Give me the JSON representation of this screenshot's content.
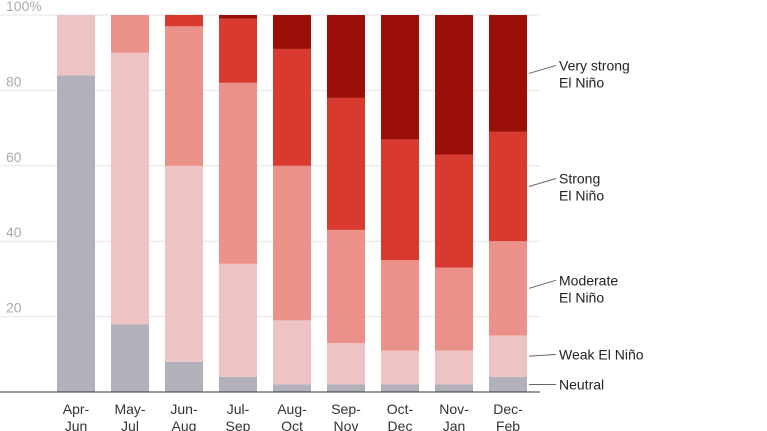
{
  "chart_data": {
    "type": "bar",
    "stacked": true,
    "title": "",
    "xlabel": "",
    "ylabel": "",
    "ylim": [
      0,
      100
    ],
    "yticks": [
      20,
      40,
      60,
      80,
      100
    ],
    "ytick_labels": [
      "20",
      "40",
      "60",
      "80",
      "100%"
    ],
    "grid": true,
    "legend_position": "right",
    "categories": [
      [
        "Apr-",
        "Jun"
      ],
      [
        "May-",
        "Jul"
      ],
      [
        "Jun-",
        "Aug"
      ],
      [
        "Jul-",
        "Sep"
      ],
      [
        "Aug-",
        "Oct"
      ],
      [
        "Sep-",
        "Nov"
      ],
      [
        "Oct-",
        "Dec"
      ],
      [
        "Nov-",
        "Jan"
      ],
      [
        "Dec-",
        "Feb"
      ]
    ],
    "series": [
      {
        "name": "Neutral",
        "label_lines": [
          "Neutral"
        ],
        "color": "#b2b1bb",
        "values": [
          84,
          18,
          8,
          4,
          2,
          2,
          2,
          2,
          4
        ]
      },
      {
        "name": "Weak El Niño",
        "label_lines": [
          "Weak El Niño"
        ],
        "color": "#edc4c3",
        "values": [
          16,
          72,
          52,
          30,
          17,
          11,
          9,
          9,
          11
        ]
      },
      {
        "name": "Moderate El Niño",
        "label_lines": [
          "Moderate",
          "El Niño"
        ],
        "color": "#ec9189",
        "values": [
          0,
          10,
          37,
          48,
          41,
          30,
          24,
          22,
          25
        ]
      },
      {
        "name": "Strong El Niño",
        "label_lines": [
          "Strong",
          "El Niño"
        ],
        "color": "#d93a2f",
        "values": [
          0,
          0,
          3,
          17,
          31,
          35,
          32,
          30,
          29
        ]
      },
      {
        "name": "Very strong El Niño",
        "label_lines": [
          "Very strong",
          "El Niño"
        ],
        "color": "#9a0f07",
        "values": [
          0,
          0,
          0,
          1,
          9,
          22,
          33,
          37,
          31
        ]
      }
    ]
  }
}
